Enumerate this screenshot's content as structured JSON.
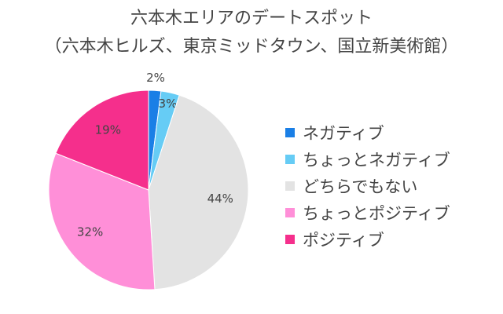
{
  "chart_data": {
    "type": "pie",
    "title": "六本木エリアのデートスポット",
    "subtitle": "（六本木ヒルズ、東京ミッドタウン、国立新美術館）",
    "categories": [
      "ネガティブ",
      "ちょっとネガティブ",
      "どちらでもない",
      "ちょっとポジティブ",
      "ポジティブ"
    ],
    "values": [
      2,
      3,
      44,
      32,
      19
    ],
    "labels": [
      "2%",
      "3%",
      "44%",
      "32%",
      "19%"
    ],
    "colors": [
      "#1a7fe6",
      "#66ccf5",
      "#e3e3e3",
      "#ff8fd8",
      "#f52f8c"
    ],
    "start": "12 o'clock",
    "direction": "clockwise",
    "legend": "right"
  }
}
